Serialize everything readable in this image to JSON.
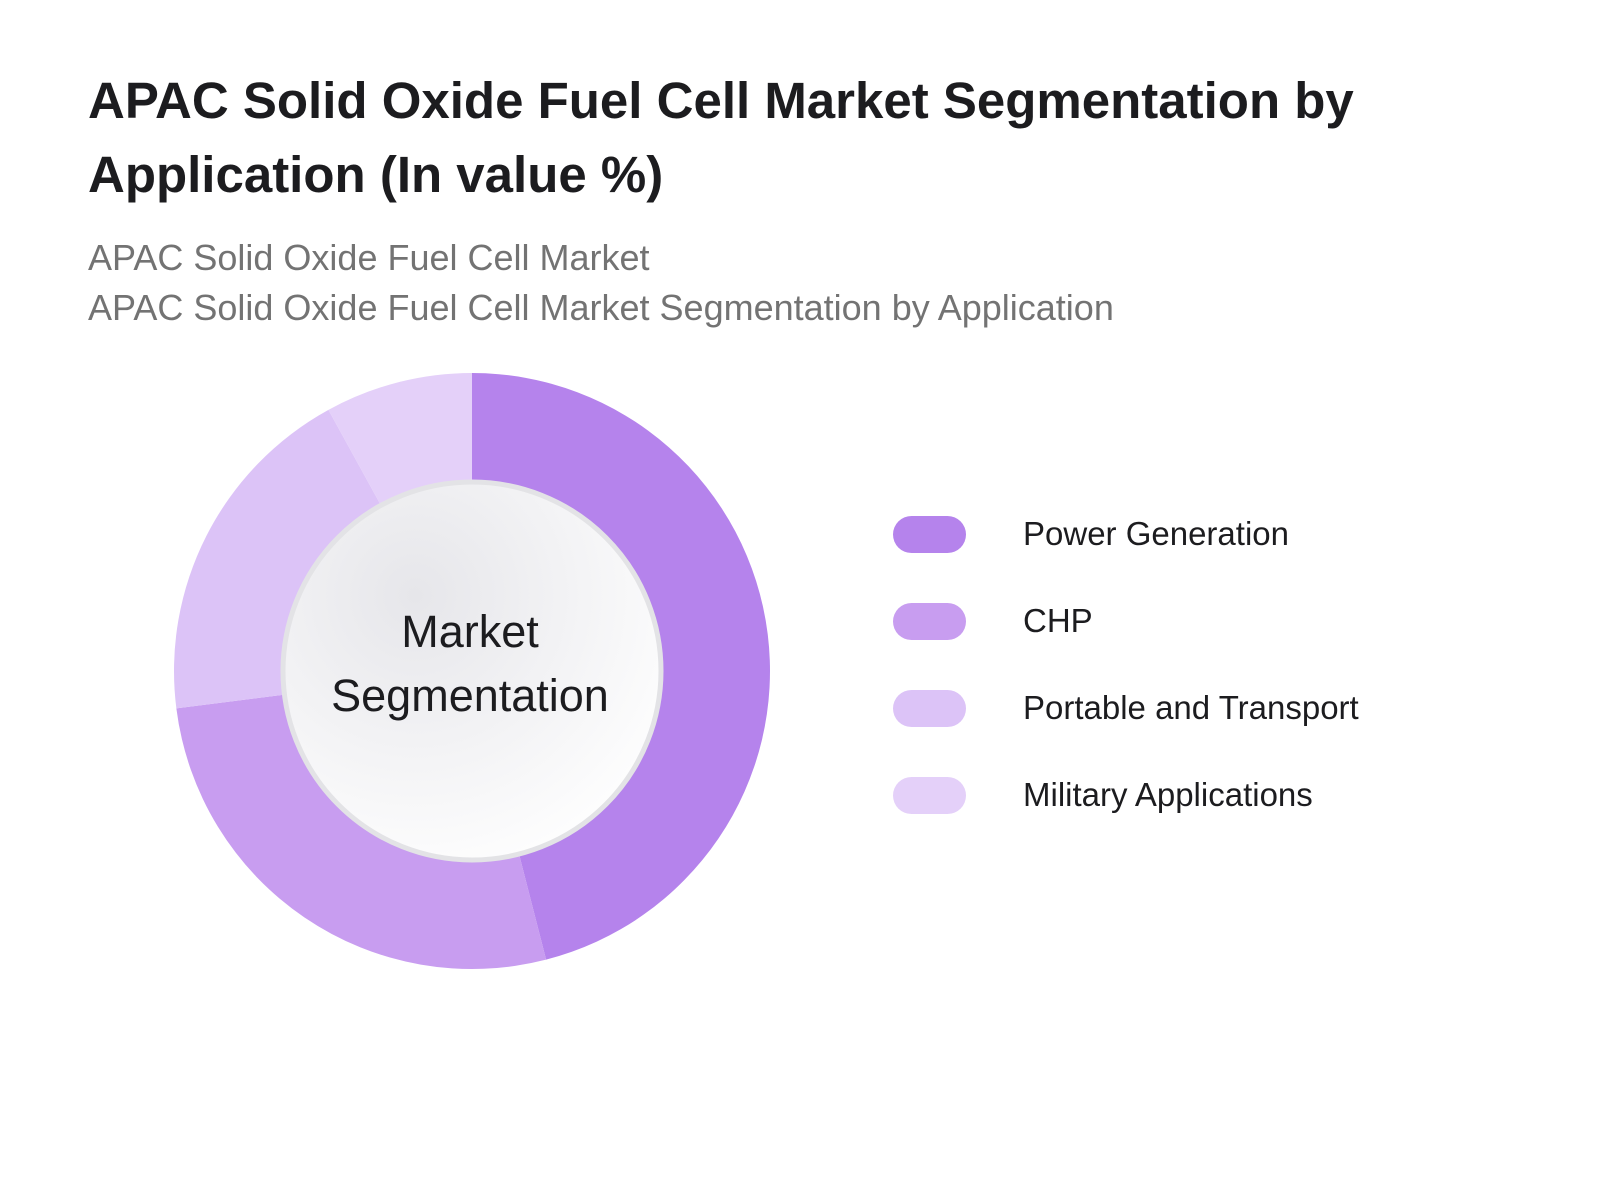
{
  "title": "APAC Solid Oxide Fuel Cell Market Segmentation by Application (In value %)",
  "subtitle_lines": [
    "APAC Solid Oxide Fuel Cell Market",
    "APAC Solid Oxide Fuel Cell Market Segmentation by Application"
  ],
  "chart_data": {
    "type": "pie",
    "variant": "donut",
    "center_label": "Market Segmentation",
    "categories": [
      "Power Generation",
      "CHP",
      "Portable and Transport",
      "Military Applications"
    ],
    "values": [
      46,
      27,
      19,
      8
    ],
    "colors": [
      "#b583ec",
      "#c89df0",
      "#dcc3f7",
      "#e4d0f9"
    ],
    "legend_position": "right",
    "start_angle": "12 o'clock",
    "direction": "clockwise"
  }
}
